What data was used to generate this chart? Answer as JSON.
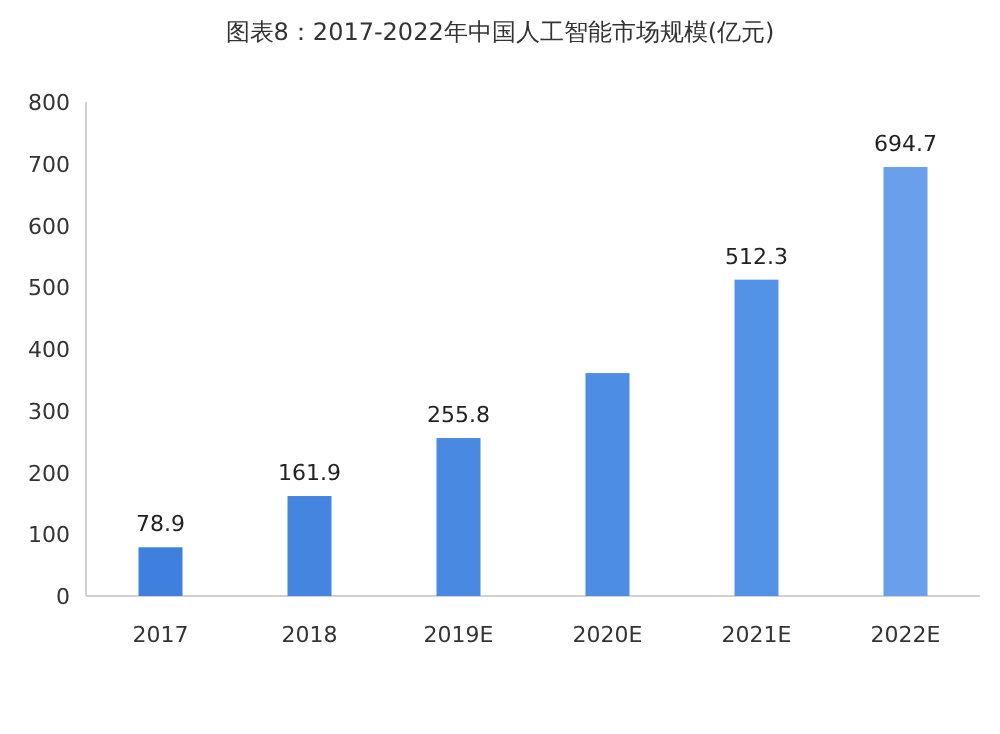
{
  "chart_data": {
    "type": "bar",
    "title": "图表8：2017-2022年中国人工智能市场规模(亿元)",
    "categories": [
      "2017",
      "2018",
      "2019E",
      "2020E",
      "2021E",
      "2022E"
    ],
    "values": [
      78.9,
      161.9,
      255.8,
      361,
      512.3,
      694.7
    ],
    "colors": [
      "#3f7fde",
      "#4585e0",
      "#4a89e2",
      "#4e8de4",
      "#5393e6",
      "#6a9fec"
    ],
    "value_labels": [
      "78.9",
      "161.9",
      "255.8",
      null,
      "512.3",
      "694.7"
    ],
    "ylim": [
      0,
      800
    ],
    "yticks": [
      0,
      100,
      200,
      300,
      400,
      500,
      600,
      700,
      800
    ],
    "grid": false
  }
}
